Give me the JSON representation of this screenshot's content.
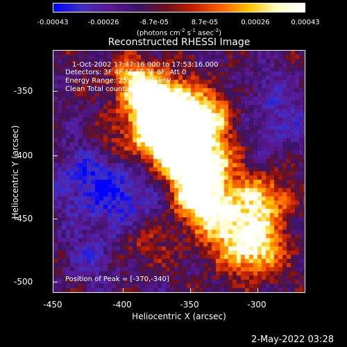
{
  "colorbar": {
    "colors": [
      "#0000ff",
      "#4030c0",
      "#5a1890",
      "#3a1468",
      "#6a1020",
      "#c02000",
      "#ff6000",
      "#ffc000",
      "#ffffc0",
      "#ffffff"
    ],
    "ticks": [
      "-0.00043",
      "-0.00026",
      "-8.7e-05",
      "8.7e-05",
      "0.00026",
      "0.00043"
    ],
    "units_main": "(photons cm",
    "units_sup1": "-2",
    "units_mid": " s",
    "units_sup2": "-1",
    "units_end": " asec",
    "units_sup3": "-2",
    "units_close": ")"
  },
  "plot": {
    "title": "Reconstructed RHESSI Image",
    "xlabel": "Heliocentric X (arcsec)",
    "ylabel": "Heliocentric Y (arcsec)",
    "xticks": [
      "-450",
      "-400",
      "-350",
      "-300"
    ],
    "yticks": [
      "-350",
      "-400",
      "-450",
      "-500"
    ],
    "annotations": [
      "1-Oct-2002 17:47:16.000 to 17:53:16.000",
      "Detectors: 3F 4F 5F 6F 7F 8F, Att 0",
      "Energy Range: 25.0 - 50.0 keV",
      "Clean     Total counts: 1.30E+04"
    ],
    "peak": "Position of Peak = [-370,-340]"
  },
  "chart_data": {
    "type": "heatmap",
    "title": "Reconstructed RHESSI Image",
    "xlabel": "Heliocentric X (arcsec)",
    "ylabel": "Heliocentric Y (arcsec)",
    "xlim": [
      -450,
      -265
    ],
    "ylim": [
      -510,
      -330
    ],
    "colorbar_range": [
      -0.00043,
      0.00043
    ],
    "peak_position": [
      -370,
      -340
    ]
  },
  "timestamp": "2-May-2022 03:28"
}
